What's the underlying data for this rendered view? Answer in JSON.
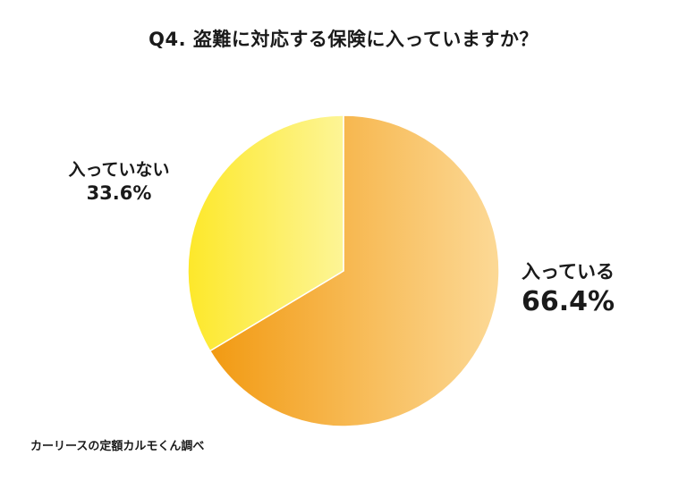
{
  "chart_data": {
    "type": "pie",
    "title": "Q4. 盗難に対応する保険に入っていますか？",
    "slices": [
      {
        "label": "入っている",
        "value": 66.4,
        "value_text": "66.4%",
        "color_start": "#f29a12",
        "color_end": "#fcd996"
      },
      {
        "label": "入っていない",
        "value": 33.6,
        "value_text": "33.6%",
        "color_start": "#fde82a",
        "color_end": "#fdf596"
      }
    ],
    "legend": "none"
  },
  "source": "カーリースの定額カルモくん調べ"
}
